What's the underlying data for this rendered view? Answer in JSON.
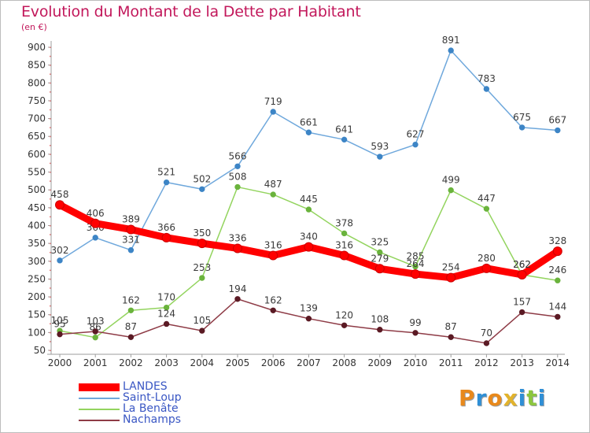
{
  "title": "Evolution du Montant de la Dette par Habitant",
  "subtitle": "(en €)",
  "logo": {
    "text": "Proxiti",
    "colors": [
      "#e8891c",
      "#2f8fd6",
      "#e8891c",
      "#e2b32c",
      "#2f8fd6",
      "#8cc63f",
      "#2f8fd6"
    ]
  },
  "chart_data": {
    "type": "line",
    "title": "Evolution du Montant de la Dette par Habitant",
    "subtitle": "(en €)",
    "x": [
      2000,
      2001,
      2002,
      2003,
      2004,
      2005,
      2006,
      2007,
      2008,
      2009,
      2010,
      2011,
      2012,
      2013,
      2014
    ],
    "ylim": [
      50,
      900
    ],
    "yticks": [
      50,
      100,
      150,
      200,
      250,
      300,
      350,
      400,
      450,
      500,
      550,
      600,
      650,
      700,
      750,
      800,
      850,
      900
    ],
    "grid": false,
    "legend_position": "bottom-left",
    "series": [
      {
        "name": "LANDES",
        "color": "#ff0000",
        "marker": "#cc0000",
        "bold": true,
        "values": [
          458,
          406,
          389,
          366,
          350,
          336,
          316,
          340,
          316,
          279,
          264,
          254,
          280,
          262,
          328
        ]
      },
      {
        "name": "Saint-Loup",
        "color": "#6fa8dc",
        "marker": "#3d85c6",
        "values": [
          302,
          366,
          331,
          521,
          502,
          566,
          719,
          661,
          641,
          593,
          627,
          891,
          783,
          675,
          667
        ]
      },
      {
        "name": "La Benâte",
        "color": "#93d45e",
        "marker": "#6ab33c",
        "values": [
          105,
          86,
          162,
          170,
          253,
          508,
          487,
          445,
          378,
          325,
          285,
          499,
          447,
          262,
          246
        ]
      },
      {
        "name": "Nachamps",
        "color": "#8e3b46",
        "marker": "#5b1a24",
        "values": [
          95,
          103,
          87,
          124,
          105,
          194,
          162,
          139,
          120,
          108,
          99,
          87,
          70,
          157,
          144
        ]
      }
    ]
  }
}
